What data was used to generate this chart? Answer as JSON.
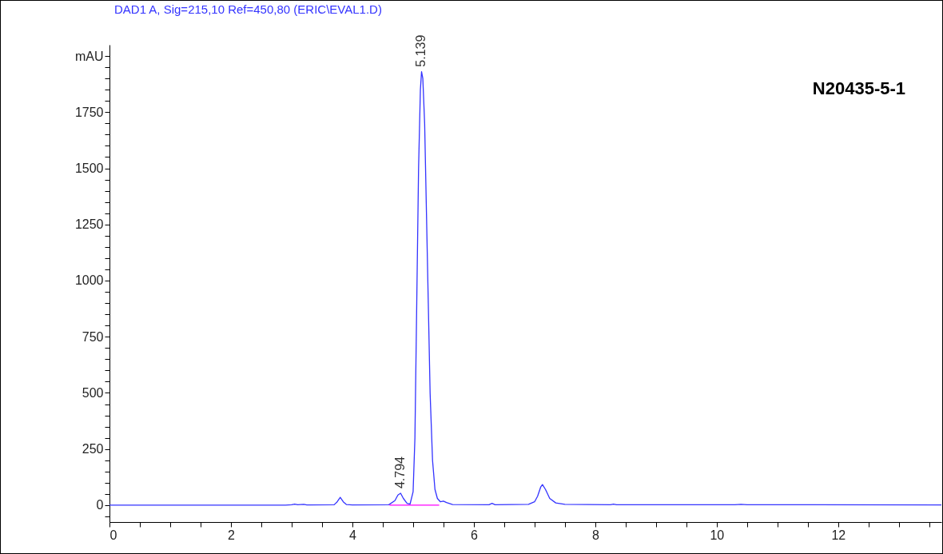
{
  "chart_data": {
    "type": "line",
    "title": "DAD1 A, Sig=215,10 Ref=450,80 (ERIC\\EVAL1.D)",
    "series": [
      {
        "color": "#3333ff",
        "x": [
          0,
          2.9,
          3.0,
          3.05,
          3.1,
          3.2,
          3.25,
          3.3,
          3.7,
          3.75,
          3.8,
          3.85,
          3.9,
          4.0,
          4.6,
          4.7,
          4.75,
          4.794,
          4.84,
          4.9,
          4.95,
          5.0,
          5.03,
          5.06,
          5.09,
          5.12,
          5.139,
          5.16,
          5.19,
          5.22,
          5.25,
          5.28,
          5.32,
          5.36,
          5.4,
          5.45,
          5.5,
          5.55,
          5.65,
          6.25,
          6.3,
          6.35,
          6.9,
          7.0,
          7.05,
          7.1,
          7.13,
          7.18,
          7.25,
          7.35,
          7.5,
          8.25,
          8.3,
          8.35,
          10.3,
          10.4,
          10.5,
          13.7
        ],
        "values": [
          0,
          0,
          2,
          5,
          2,
          4,
          1,
          1,
          2,
          15,
          35,
          15,
          3,
          1,
          2,
          20,
          45,
          53,
          30,
          8,
          5,
          60,
          300,
          900,
          1500,
          1850,
          1930,
          1900,
          1700,
          1300,
          900,
          500,
          200,
          70,
          30,
          15,
          18,
          12,
          3,
          2,
          8,
          2,
          4,
          15,
          40,
          80,
          92,
          70,
          30,
          10,
          4,
          2,
          5,
          2,
          2,
          4,
          2,
          1
        ]
      },
      {
        "color": "#ff00ff",
        "x": [
          4.61,
          5.43
        ],
        "values": [
          0,
          0
        ]
      }
    ],
    "xlim": [
      0,
      13.7
    ],
    "xticks": [
      0,
      {
        "value": 0.5,
        "label": null
      },
      {
        "value": 1,
        "label": null
      },
      {
        "value": 1.5,
        "label": null
      },
      2,
      {
        "value": 2.5,
        "label": null
      },
      {
        "value": 3,
        "label": null
      },
      {
        "value": 3.5,
        "label": null
      },
      4,
      {
        "value": 4.5,
        "label": null
      },
      {
        "value": 5,
        "label": null
      },
      {
        "value": 5.5,
        "label": null
      },
      6,
      {
        "value": 6.5,
        "label": null
      },
      {
        "value": 7,
        "label": null
      },
      {
        "value": 7.5,
        "label": null
      },
      8,
      {
        "value": 8.5,
        "label": null
      },
      {
        "value": 9,
        "label": null
      },
      {
        "value": 9.5,
        "label": null
      },
      10,
      {
        "value": 10.5,
        "label": null
      },
      {
        "value": 11,
        "label": null
      },
      {
        "value": 11.5,
        "label": null
      },
      12,
      {
        "value": 12.5,
        "label": null
      },
      {
        "value": 13,
        "label": null
      },
      {
        "value": 13.5,
        "label": null
      }
    ],
    "ylim": [
      -75,
      2050
    ],
    "yticks": [
      {
        "value": -50,
        "label": null
      },
      0,
      {
        "value": 50,
        "label": null
      },
      {
        "value": 100,
        "label": null
      },
      {
        "value": 150,
        "label": null
      },
      {
        "value": 200,
        "label": null
      },
      250,
      {
        "value": 300,
        "label": null
      },
      {
        "value": 350,
        "label": null
      },
      {
        "value": 400,
        "label": null
      },
      {
        "value": 450,
        "label": null
      },
      500,
      {
        "value": 550,
        "label": null
      },
      {
        "value": 600,
        "label": null
      },
      {
        "value": 650,
        "label": null
      },
      {
        "value": 700,
        "label": null
      },
      750,
      {
        "value": 800,
        "label": null
      },
      {
        "value": 850,
        "label": null
      },
      {
        "value": 900,
        "label": null
      },
      {
        "value": 950,
        "label": null
      },
      1000,
      {
        "value": 1050,
        "label": null
      },
      {
        "value": 1100,
        "label": null
      },
      {
        "value": 1150,
        "label": null
      },
      {
        "value": 1200,
        "label": null
      },
      1250,
      {
        "value": 1300,
        "label": null
      },
      {
        "value": 1350,
        "label": null
      },
      {
        "value": 1400,
        "label": null
      },
      {
        "value": 1450,
        "label": null
      },
      1500,
      {
        "value": 1550,
        "label": null
      },
      {
        "value": 1600,
        "label": null
      },
      {
        "value": 1650,
        "label": null
      },
      {
        "value": 1700,
        "label": null
      },
      1750,
      {
        "value": 1800,
        "label": null
      },
      {
        "value": 1850,
        "label": null
      },
      {
        "value": 1900,
        "label": null
      },
      {
        "value": 1950,
        "label": null
      },
      {
        "value": 2000,
        "label": "mAU"
      }
    ],
    "annotations": [
      {
        "text": "5.139",
        "x": 5.139,
        "y": 1930
      },
      {
        "text": "4.794",
        "x": 4.794,
        "y": 53
      },
      "N20435-5-1"
    ],
    "grid": false
  }
}
